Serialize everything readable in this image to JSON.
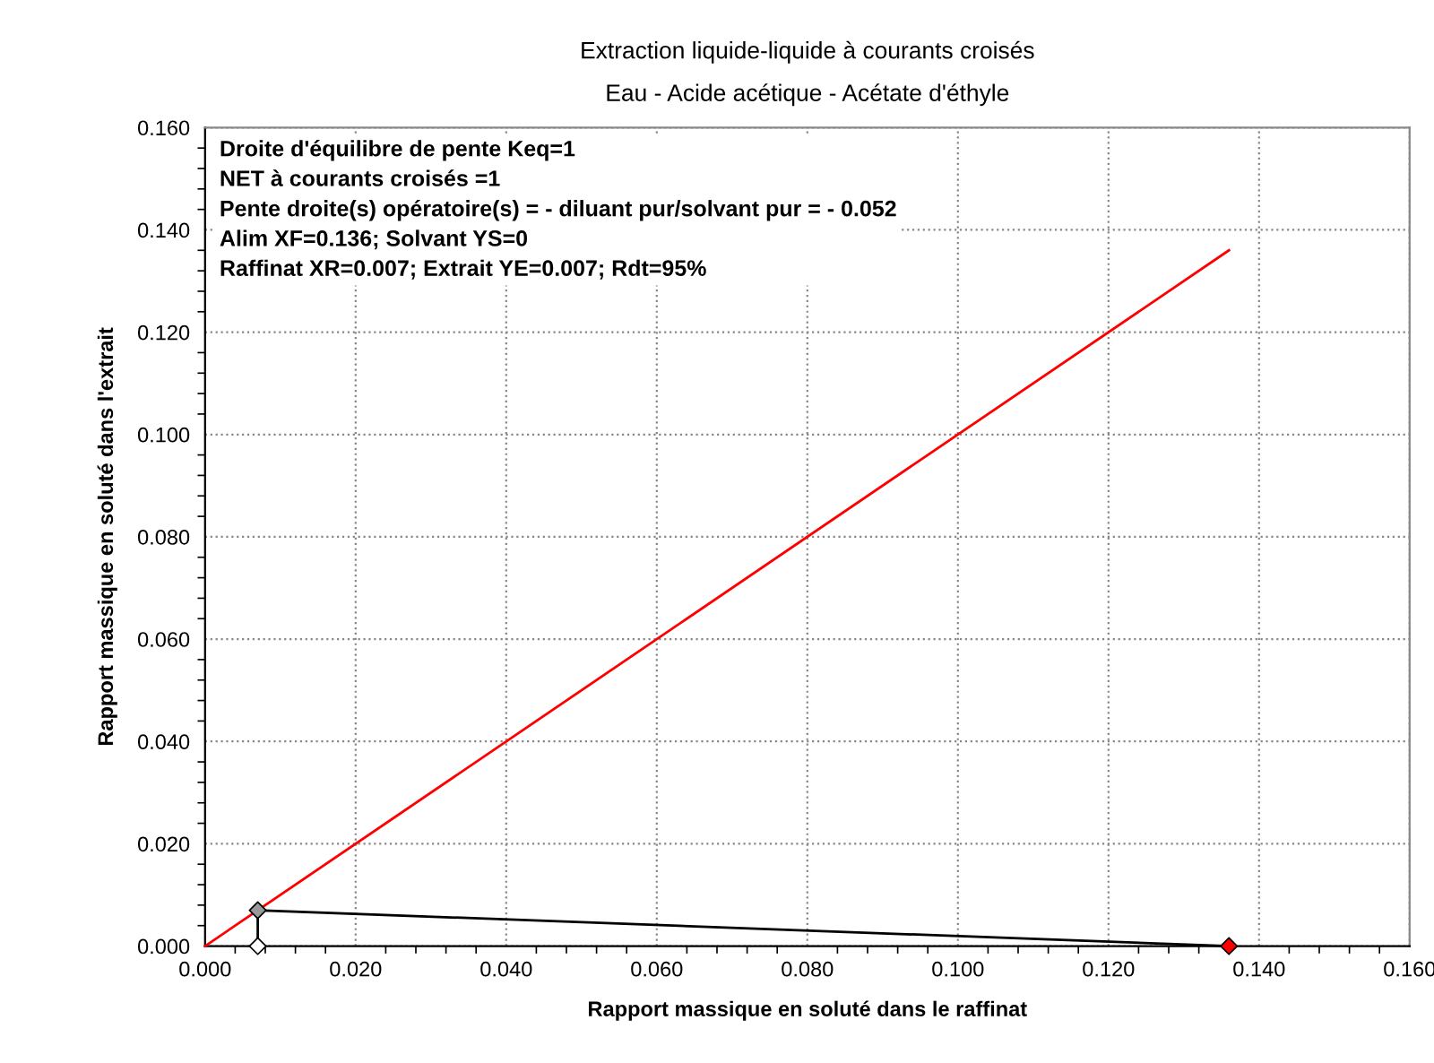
{
  "chart_data": {
    "type": "line",
    "title": "Extraction liquide-liquide à courants croisés",
    "subtitle": "Eau - Acide acétique - Acétate d'éthyle",
    "xlabel": "Rapport massique en soluté dans le raffinat",
    "ylabel": "Rapport massique en soluté dans l'extrait",
    "xlim": [
      0,
      0.16
    ],
    "ylim": [
      0,
      0.16
    ],
    "xticks": [
      {
        "value": 0,
        "label": "0.000"
      },
      {
        "value": 0.02,
        "label": "0.020"
      },
      {
        "value": 0.04,
        "label": "0.040"
      },
      {
        "value": 0.06,
        "label": "0.060"
      },
      {
        "value": 0.08,
        "label": "0.080"
      },
      {
        "value": 0.1,
        "label": "0.100"
      },
      {
        "value": 0.12,
        "label": "0.120"
      },
      {
        "value": 0.14,
        "label": "0.140"
      },
      {
        "value": 0.16,
        "label": "0.160"
      }
    ],
    "yticks": [
      {
        "value": 0,
        "label": "0.000"
      },
      {
        "value": 0.02,
        "label": "0.020"
      },
      {
        "value": 0.04,
        "label": "0.040"
      },
      {
        "value": 0.06,
        "label": "0.060"
      },
      {
        "value": 0.08,
        "label": "0.080"
      },
      {
        "value": 0.1,
        "label": "0.100"
      },
      {
        "value": 0.12,
        "label": "0.120"
      },
      {
        "value": 0.14,
        "label": "0.140"
      },
      {
        "value": 0.16,
        "label": "0.160"
      }
    ],
    "grid": true,
    "legend": false,
    "line_style": "solid",
    "series": [
      {
        "color": "#ff0000",
        "x": [
          0,
          0.136
        ],
        "values": [
          0,
          0.136
        ],
        "marker": "none"
      },
      {
        "color": "#000000",
        "x": [
          0.007,
          0.007,
          0.136
        ],
        "values": [
          0,
          0.007,
          0
        ],
        "marker": "diamond",
        "colors": [
          "#ffffff",
          "#999999",
          "#ff0000"
        ]
      }
    ],
    "annotations": [
      "Droite d'équilibre de pente Keq=1",
      "NET à courants croisés =1",
      "Pente droite(s) opératoire(s) = - diluant pur/solvant pur = - 0.052",
      "Alim XF=0.136; Solvant YS=0",
      "Raffinat XR=0.007; Extrait YE=0.007; Rdt=95%"
    ]
  }
}
